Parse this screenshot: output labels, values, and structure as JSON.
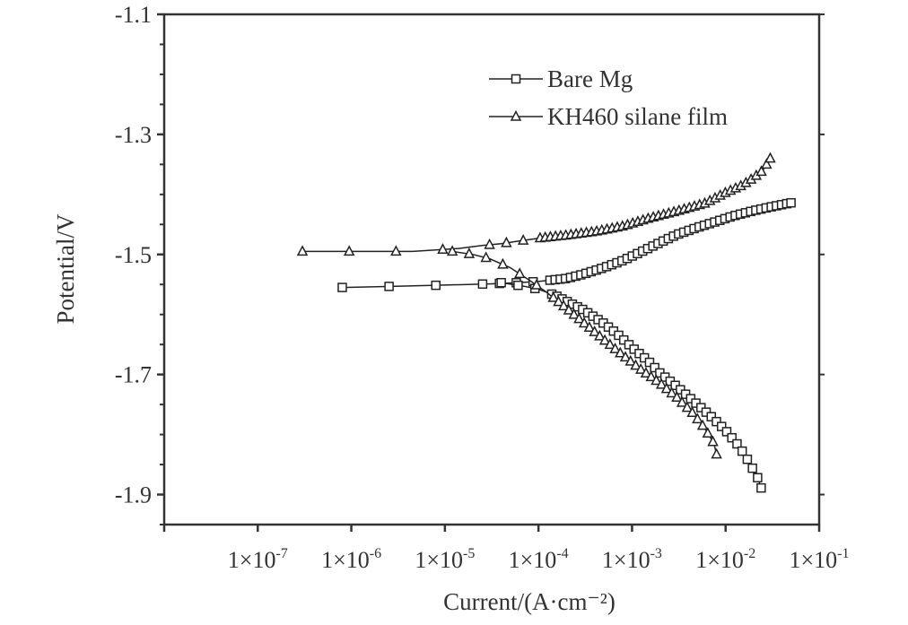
{
  "chart_data": {
    "type": "line",
    "xlabel": "Current/(A·cm⁻²)",
    "ylabel": "Potential/V",
    "xscale": "log",
    "xlim": [
      1e-08,
      0.1
    ],
    "ylim": [
      -1.95,
      -1.1
    ],
    "yticks": [
      {
        "value": -1.1,
        "label": "-1.1"
      },
      {
        "value": -1.3,
        "label": "-1.3"
      },
      {
        "value": -1.5,
        "label": "-1.5"
      },
      {
        "value": -1.7,
        "label": "-1.7"
      },
      {
        "value": -1.9,
        "label": "-1.9"
      }
    ],
    "xticks": [
      {
        "value": 1e-07,
        "base": "1×10",
        "exp": "-7"
      },
      {
        "value": 1e-06,
        "base": "1×10",
        "exp": "-6"
      },
      {
        "value": 1e-05,
        "base": "1×10",
        "exp": "-5"
      },
      {
        "value": 0.0001,
        "base": "1×10",
        "exp": "-4"
      },
      {
        "value": 0.001,
        "base": "1×10",
        "exp": "-3"
      },
      {
        "value": 0.01,
        "base": "1×10",
        "exp": "-2"
      },
      {
        "value": 0.1,
        "base": "1×10",
        "exp": "-1"
      }
    ],
    "legend": "top-right",
    "grid": false,
    "series": [
      {
        "name": "Bare Mg",
        "marker": "square",
        "anodic": [
          [
            8e-07,
            -1.555
          ],
          [
            3e-06,
            -1.553
          ],
          [
            1e-05,
            -1.551
          ],
          [
            3e-05,
            -1.549
          ],
          [
            6e-05,
            -1.547
          ],
          [
            0.0001,
            -1.545
          ],
          [
            0.0002,
            -1.54
          ],
          [
            0.0003,
            -1.533
          ],
          [
            0.0005,
            -1.522
          ],
          [
            0.0008,
            -1.51
          ],
          [
            0.0012,
            -1.497
          ],
          [
            0.002,
            -1.48
          ],
          [
            0.003,
            -1.467
          ],
          [
            0.005,
            -1.455
          ],
          [
            0.008,
            -1.445
          ],
          [
            0.012,
            -1.436
          ],
          [
            0.02,
            -1.427
          ],
          [
            0.03,
            -1.421
          ],
          [
            0.04,
            -1.417
          ],
          [
            0.05,
            -1.414
          ]
        ],
        "cathodic": [
          [
            4e-05,
            -1.547
          ],
          [
            7e-05,
            -1.553
          ],
          [
            0.0001,
            -1.558
          ],
          [
            0.00015,
            -1.568
          ],
          [
            0.0002,
            -1.578
          ],
          [
            0.0003,
            -1.592
          ],
          [
            0.0005,
            -1.615
          ],
          [
            0.0007,
            -1.633
          ],
          [
            0.001,
            -1.655
          ],
          [
            0.0015,
            -1.678
          ],
          [
            0.002,
            -1.698
          ],
          [
            0.003,
            -1.72
          ],
          [
            0.005,
            -1.75
          ],
          [
            0.007,
            -1.77
          ],
          [
            0.01,
            -1.793
          ],
          [
            0.014,
            -1.82
          ],
          [
            0.018,
            -1.847
          ],
          [
            0.022,
            -1.872
          ],
          [
            0.024,
            -1.889
          ]
        ]
      },
      {
        "name": "KH460 silane film",
        "marker": "triangle",
        "anodic": [
          [
            3e-07,
            -1.495
          ],
          [
            9e-07,
            -1.495
          ],
          [
            4.5e-06,
            -1.495
          ],
          [
            1.4e-05,
            -1.49
          ],
          [
            2.5e-05,
            -1.485
          ],
          [
            4e-05,
            -1.482
          ],
          [
            6e-05,
            -1.478
          ],
          [
            0.0001,
            -1.473
          ],
          [
            0.0002,
            -1.468
          ],
          [
            0.0004,
            -1.462
          ],
          [
            0.0008,
            -1.453
          ],
          [
            0.0015,
            -1.44
          ],
          [
            0.003,
            -1.428
          ],
          [
            0.006,
            -1.415
          ],
          [
            0.01,
            -1.397
          ],
          [
            0.015,
            -1.385
          ],
          [
            0.02,
            -1.372
          ],
          [
            0.025,
            -1.36
          ],
          [
            0.03,
            -1.34
          ]
        ],
        "cathodic": [
          [
            1.2e-05,
            -1.495
          ],
          [
            2e-05,
            -1.5
          ],
          [
            3e-05,
            -1.507
          ],
          [
            5e-05,
            -1.522
          ],
          [
            8e-05,
            -1.543
          ],
          [
            0.00012,
            -1.562
          ],
          [
            0.0002,
            -1.59
          ],
          [
            0.0003,
            -1.613
          ],
          [
            0.0005,
            -1.642
          ],
          [
            0.0008,
            -1.668
          ],
          [
            0.0012,
            -1.69
          ],
          [
            0.002,
            -1.715
          ],
          [
            0.003,
            -1.738
          ],
          [
            0.0045,
            -1.765
          ],
          [
            0.006,
            -1.79
          ],
          [
            0.0075,
            -1.815
          ],
          [
            0.008,
            -1.833
          ]
        ]
      }
    ]
  }
}
